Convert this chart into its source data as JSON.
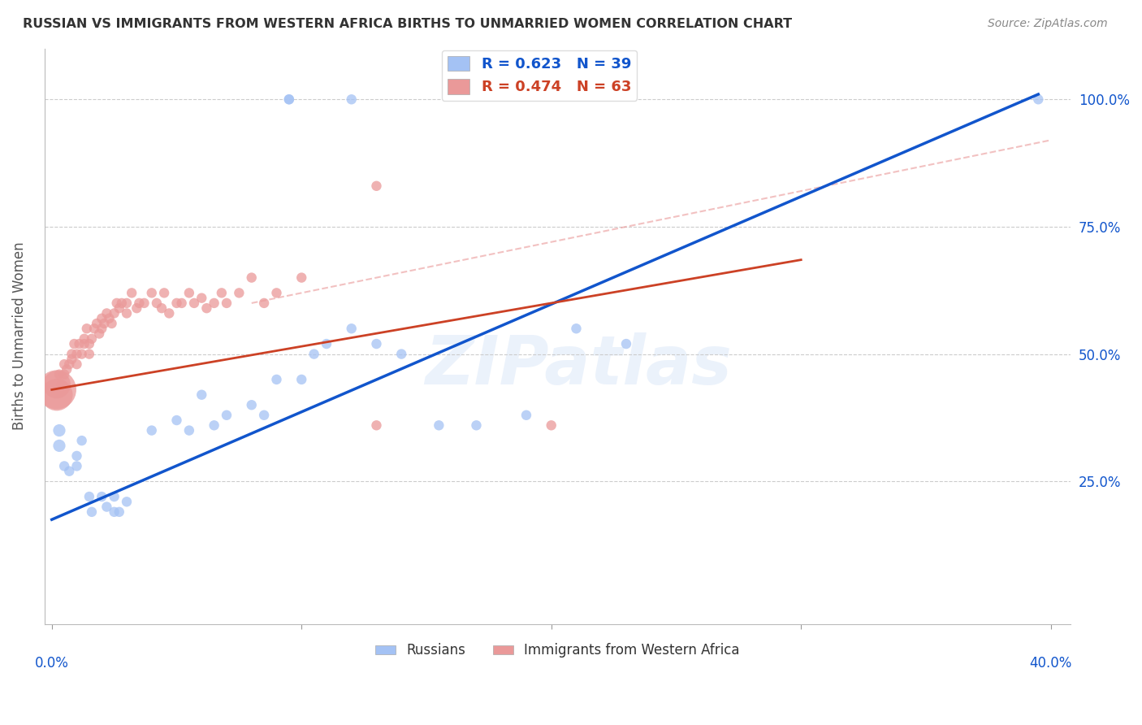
{
  "title": "RUSSIAN VS IMMIGRANTS FROM WESTERN AFRICA BIRTHS TO UNMARRIED WOMEN CORRELATION CHART",
  "source": "Source: ZipAtlas.com",
  "ylabel": "Births to Unmarried Women",
  "xmin": -0.003,
  "xmax": 0.408,
  "ymin": -0.03,
  "ymax": 1.1,
  "blue_color": "#a4c2f4",
  "pink_color": "#ea9999",
  "blue_line_color": "#1155cc",
  "pink_line_color": "#cc4125",
  "dashed_line_color": "#ea9999",
  "watermark": "ZIPatlas",
  "legend_blue_label": "R = 0.623   N = 39",
  "legend_pink_label": "R = 0.474   N = 63",
  "legend_bottom_blue": "Russians",
  "legend_bottom_pink": "Immigrants from Western Africa",
  "blue_line": {
    "x0": 0.0,
    "x1": 0.395,
    "y0": 0.175,
    "y1": 1.01
  },
  "pink_line": {
    "x0": 0.0,
    "x1": 0.3,
    "y0": 0.43,
    "y1": 0.685
  },
  "dashed_line": {
    "x0": 0.08,
    "x1": 0.4,
    "y0": 0.6,
    "y1": 0.92
  },
  "blue_scatter_x": [
    0.003,
    0.003,
    0.005,
    0.007,
    0.01,
    0.01,
    0.012,
    0.015,
    0.016,
    0.02,
    0.022,
    0.025,
    0.025,
    0.027,
    0.03,
    0.04,
    0.05,
    0.055,
    0.06,
    0.065,
    0.07,
    0.08,
    0.085,
    0.09,
    0.1,
    0.105,
    0.11,
    0.12,
    0.13,
    0.14,
    0.155,
    0.17,
    0.19,
    0.21,
    0.23,
    0.095,
    0.095,
    0.12,
    0.395
  ],
  "blue_scatter_y": [
    0.35,
    0.32,
    0.28,
    0.27,
    0.3,
    0.28,
    0.33,
    0.22,
    0.19,
    0.22,
    0.2,
    0.22,
    0.19,
    0.19,
    0.21,
    0.35,
    0.37,
    0.35,
    0.42,
    0.36,
    0.38,
    0.4,
    0.38,
    0.45,
    0.45,
    0.5,
    0.52,
    0.55,
    0.52,
    0.5,
    0.36,
    0.36,
    0.38,
    0.55,
    0.52,
    1.0,
    1.0,
    1.0,
    1.0
  ],
  "blue_scatter_s": [
    120,
    120,
    80,
    80,
    80,
    80,
    80,
    80,
    80,
    80,
    80,
    80,
    80,
    80,
    80,
    80,
    80,
    80,
    80,
    80,
    80,
    80,
    80,
    80,
    80,
    80,
    80,
    80,
    80,
    80,
    80,
    80,
    80,
    80,
    80,
    80,
    80,
    80,
    80
  ],
  "pink_scatter_x": [
    0.002,
    0.002,
    0.002,
    0.003,
    0.004,
    0.005,
    0.005,
    0.006,
    0.007,
    0.008,
    0.008,
    0.009,
    0.01,
    0.01,
    0.011,
    0.012,
    0.013,
    0.013,
    0.014,
    0.015,
    0.015,
    0.016,
    0.017,
    0.018,
    0.019,
    0.02,
    0.02,
    0.021,
    0.022,
    0.023,
    0.024,
    0.025,
    0.026,
    0.027,
    0.028,
    0.03,
    0.03,
    0.032,
    0.034,
    0.035,
    0.037,
    0.04,
    0.042,
    0.044,
    0.045,
    0.047,
    0.05,
    0.052,
    0.055,
    0.057,
    0.06,
    0.062,
    0.065,
    0.068,
    0.07,
    0.075,
    0.08,
    0.085,
    0.09,
    0.1,
    0.13,
    0.13,
    0.2
  ],
  "pink_scatter_y": [
    0.43,
    0.42,
    0.44,
    0.46,
    0.44,
    0.48,
    0.46,
    0.47,
    0.48,
    0.5,
    0.49,
    0.52,
    0.5,
    0.48,
    0.52,
    0.5,
    0.52,
    0.53,
    0.55,
    0.52,
    0.5,
    0.53,
    0.55,
    0.56,
    0.54,
    0.55,
    0.57,
    0.56,
    0.58,
    0.57,
    0.56,
    0.58,
    0.6,
    0.59,
    0.6,
    0.58,
    0.6,
    0.62,
    0.59,
    0.6,
    0.6,
    0.62,
    0.6,
    0.59,
    0.62,
    0.58,
    0.6,
    0.6,
    0.62,
    0.6,
    0.61,
    0.59,
    0.6,
    0.62,
    0.6,
    0.62,
    0.65,
    0.6,
    0.62,
    0.65,
    0.83,
    0.36,
    0.36
  ],
  "pink_scatter_s": [
    1200,
    800,
    600,
    80,
    80,
    80,
    80,
    80,
    80,
    80,
    80,
    80,
    80,
    80,
    80,
    80,
    80,
    80,
    80,
    80,
    80,
    80,
    80,
    80,
    80,
    80,
    80,
    80,
    80,
    80,
    80,
    80,
    80,
    80,
    80,
    80,
    80,
    80,
    80,
    80,
    80,
    80,
    80,
    80,
    80,
    80,
    80,
    80,
    80,
    80,
    80,
    80,
    80,
    80,
    80,
    80,
    80,
    80,
    80,
    80,
    80,
    80,
    80
  ]
}
